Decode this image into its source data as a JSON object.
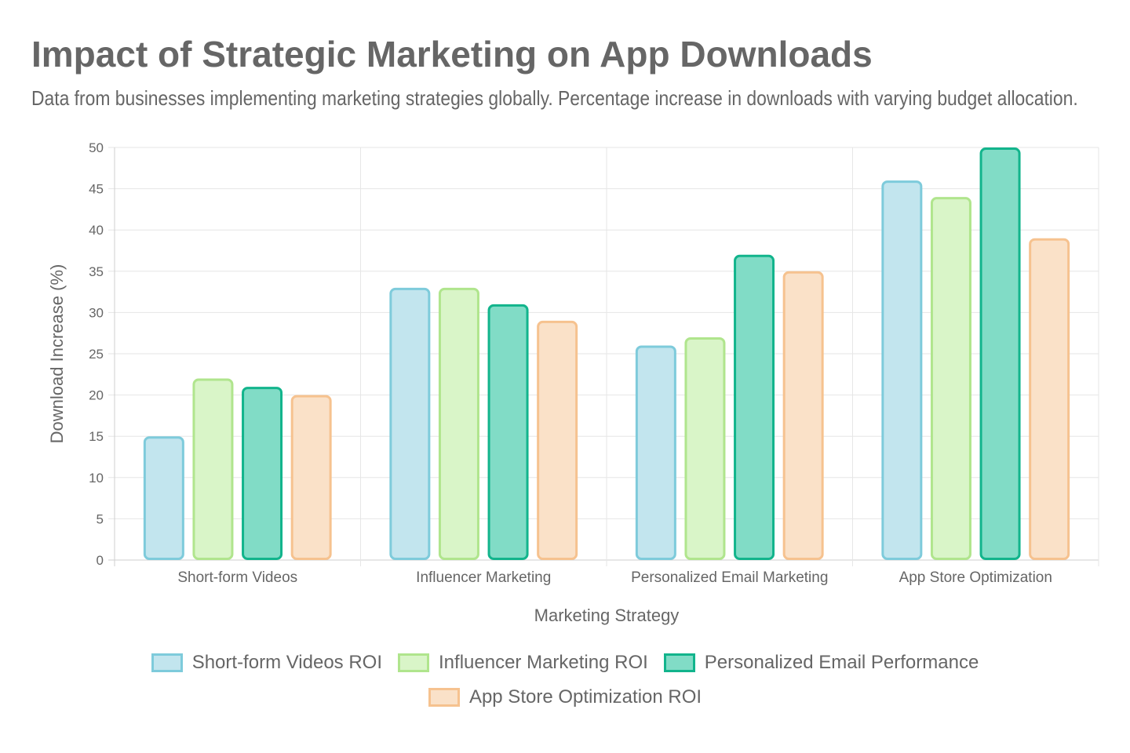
{
  "chart_data": {
    "type": "bar",
    "title": "Impact of Strategic Marketing on App Downloads",
    "subtitle": "Data from businesses implementing marketing strategies globally. Percentage increase in downloads with varying budget allocation.",
    "xlabel": "Marketing Strategy",
    "ylabel": "Download Increase (%)",
    "ylim": [
      0,
      50
    ],
    "yticks": [
      0,
      5,
      10,
      15,
      20,
      25,
      30,
      35,
      40,
      45,
      50
    ],
    "grid": true,
    "legend_position": "bottom",
    "categories": [
      "Short-form Videos",
      "Influencer Marketing",
      "Personalized Email Marketing",
      "App Store Optimization"
    ],
    "series": [
      {
        "name": "Short-form Videos ROI",
        "values": [
          15,
          33,
          26,
          46
        ],
        "fill": "#c2e5ee",
        "stroke": "#7ecbdb"
      },
      {
        "name": "Influencer Marketing ROI",
        "values": [
          22,
          33,
          27,
          44
        ],
        "fill": "#d9f5c8",
        "stroke": "#b0e58d"
      },
      {
        "name": "Personalized Email Performance",
        "values": [
          21,
          31,
          37,
          50
        ],
        "fill": "#81dcc6",
        "stroke": "#12b48c"
      },
      {
        "name": "App Store Optimization ROI",
        "values": [
          20,
          29,
          35,
          39
        ],
        "fill": "#fae1c8",
        "stroke": "#f6c28f"
      }
    ]
  }
}
